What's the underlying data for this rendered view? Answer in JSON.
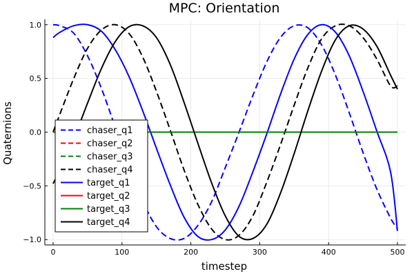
{
  "chart_data": {
    "type": "line",
    "title": "MPC: Orientation",
    "xlabel": "timestep",
    "ylabel": "Quaternions",
    "xlim": [
      -12,
      512
    ],
    "ylim": [
      -1.05,
      1.05
    ],
    "xticks": [
      0,
      100,
      200,
      300,
      400,
      500
    ],
    "xtick_labels": [
      "0",
      "100",
      "200",
      "300",
      "400",
      "500"
    ],
    "yticks": [
      -1.0,
      -0.5,
      0.0,
      0.5,
      1.0
    ],
    "ytick_labels": [
      "−1.0",
      "−0.5",
      "0.0",
      "0.5",
      "1.0"
    ],
    "grid": true,
    "legend_position": "bottom-left",
    "series": [
      {
        "name": "chaser_q1",
        "color": "#0000ff",
        "dash": "dashed",
        "x": [
          0,
          10,
          30,
          50,
          70,
          90,
          110,
          130,
          150,
          170,
          190,
          210,
          230,
          250,
          270,
          290,
          310,
          330,
          350,
          370,
          390,
          410,
          430,
          450,
          470,
          490,
          500
        ],
        "y": [
          1.0,
          0.99,
          0.92,
          0.71,
          0.41,
          0.05,
          -0.31,
          -0.64,
          -0.88,
          -0.99,
          -0.99,
          -0.87,
          -0.65,
          -0.33,
          0.0,
          0.34,
          0.65,
          0.88,
          0.99,
          0.97,
          0.81,
          0.53,
          0.18,
          -0.19,
          -0.53,
          -0.8,
          -0.9
        ]
      },
      {
        "name": "chaser_q2",
        "color": "#ff0000",
        "dash": "dashed",
        "x": [
          0,
          100,
          200,
          300,
          400,
          500
        ],
        "y": [
          0.0,
          0.0,
          0.0,
          0.0,
          0.0,
          0.0
        ]
      },
      {
        "name": "chaser_q3",
        "color": "#008000",
        "dash": "dashed",
        "x": [
          0,
          100,
          200,
          300,
          400,
          500
        ],
        "y": [
          0.0,
          0.0,
          0.0,
          0.0,
          0.0,
          0.0
        ]
      },
      {
        "name": "chaser_q4",
        "color": "#000000",
        "dash": "dashed",
        "x": [
          0,
          10,
          30,
          50,
          70,
          90,
          110,
          130,
          150,
          170,
          190,
          210,
          230,
          250,
          270,
          290,
          310,
          330,
          350,
          370,
          390,
          410,
          430,
          450,
          470,
          490,
          500
        ],
        "y": [
          0.0,
          0.17,
          0.5,
          0.78,
          0.95,
          1.0,
          0.92,
          0.7,
          0.38,
          0.02,
          -0.35,
          -0.67,
          -0.9,
          -1.0,
          -0.96,
          -0.78,
          -0.47,
          -0.12,
          0.25,
          0.6,
          0.87,
          0.99,
          0.99,
          0.88,
          0.68,
          0.43,
          0.43
        ]
      },
      {
        "name": "target_q1",
        "color": "#0000ff",
        "dash": "solid",
        "x": [
          0,
          10,
          30,
          50,
          70,
          90,
          110,
          130,
          150,
          170,
          190,
          210,
          230,
          250,
          270,
          290,
          310,
          330,
          350,
          370,
          390,
          410,
          430,
          450,
          470,
          490,
          500
        ],
        "y": [
          0.88,
          0.93,
          0.99,
          1.0,
          0.94,
          0.77,
          0.52,
          0.2,
          -0.15,
          -0.49,
          -0.79,
          -0.97,
          -1.0,
          -0.91,
          -0.69,
          -0.37,
          -0.02,
          0.35,
          0.68,
          0.91,
          1.0,
          0.93,
          0.71,
          0.38,
          0.01,
          -0.37,
          -0.92
        ]
      },
      {
        "name": "target_q2",
        "color": "#ff0000",
        "dash": "solid",
        "x": [
          0,
          100,
          200,
          300,
          400,
          500
        ],
        "y": [
          0.0,
          0.0,
          0.0,
          0.0,
          0.0,
          0.0
        ]
      },
      {
        "name": "target_q3",
        "color": "#008000",
        "dash": "solid",
        "x": [
          0,
          100,
          200,
          300,
          400,
          500
        ],
        "y": [
          0.0,
          0.0,
          0.0,
          0.0,
          0.0,
          0.0
        ]
      },
      {
        "name": "target_q4",
        "color": "#000000",
        "dash": "solid",
        "x": [
          0,
          10,
          30,
          50,
          70,
          90,
          110,
          130,
          150,
          170,
          190,
          210,
          230,
          250,
          270,
          290,
          310,
          330,
          350,
          370,
          390,
          410,
          430,
          450,
          470,
          490,
          500
        ],
        "y": [
          -0.48,
          -0.35,
          -0.06,
          0.27,
          0.59,
          0.84,
          0.98,
          0.99,
          0.88,
          0.63,
          0.28,
          -0.1,
          -0.47,
          -0.78,
          -0.97,
          -0.99,
          -0.86,
          -0.57,
          -0.2,
          0.2,
          0.57,
          0.86,
          0.99,
          0.96,
          0.8,
          0.53,
          0.4
        ]
      }
    ]
  }
}
